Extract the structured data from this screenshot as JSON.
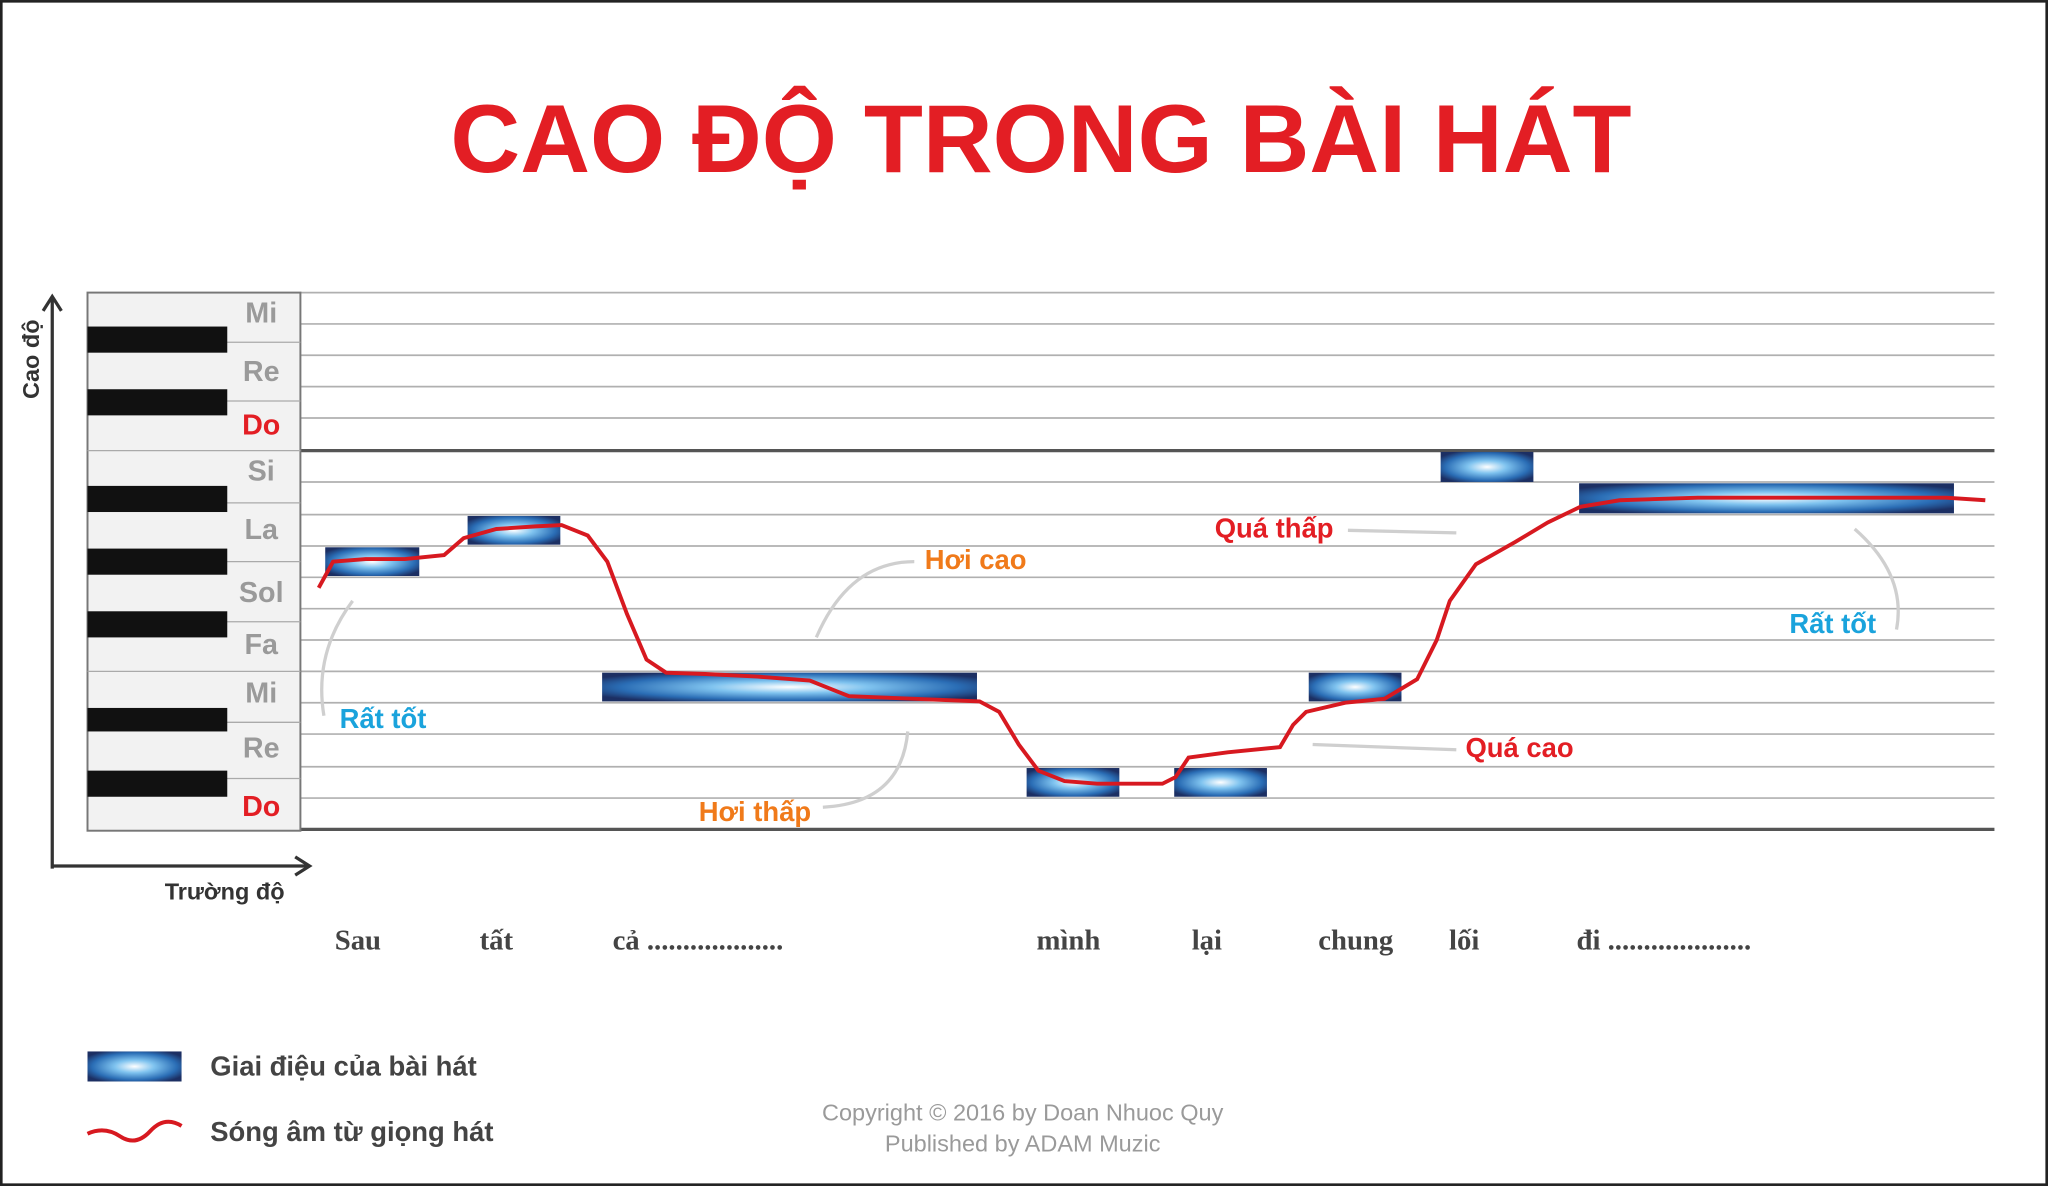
{
  "header": {
    "title": "CAO ĐỘ TRONG BÀI HÁT"
  },
  "axes": {
    "y_label": "Cao độ",
    "x_label": "Trường độ"
  },
  "keys": [
    "Mi",
    "Re",
    "Do",
    "Si",
    "La",
    "Sol",
    "Fa",
    "Mi",
    "Re",
    "Do"
  ],
  "lyrics": [
    "Sau",
    "tất",
    "cả ...................",
    "mình",
    "lại",
    "chung",
    "lối",
    "đi ...................."
  ],
  "annotations": [
    "Rất tốt",
    "Hơi cao",
    "Hơi thấp",
    "Quá thấp",
    "Quá cao",
    "Rất tốt"
  ],
  "legend": [
    "Giai điệu của bài hát",
    "Sóng âm từ giọng hát"
  ],
  "footer": [
    "Copyright © 2016 by Doan Nhuoc Quy",
    "Published by ADAM Muzic"
  ]
}
